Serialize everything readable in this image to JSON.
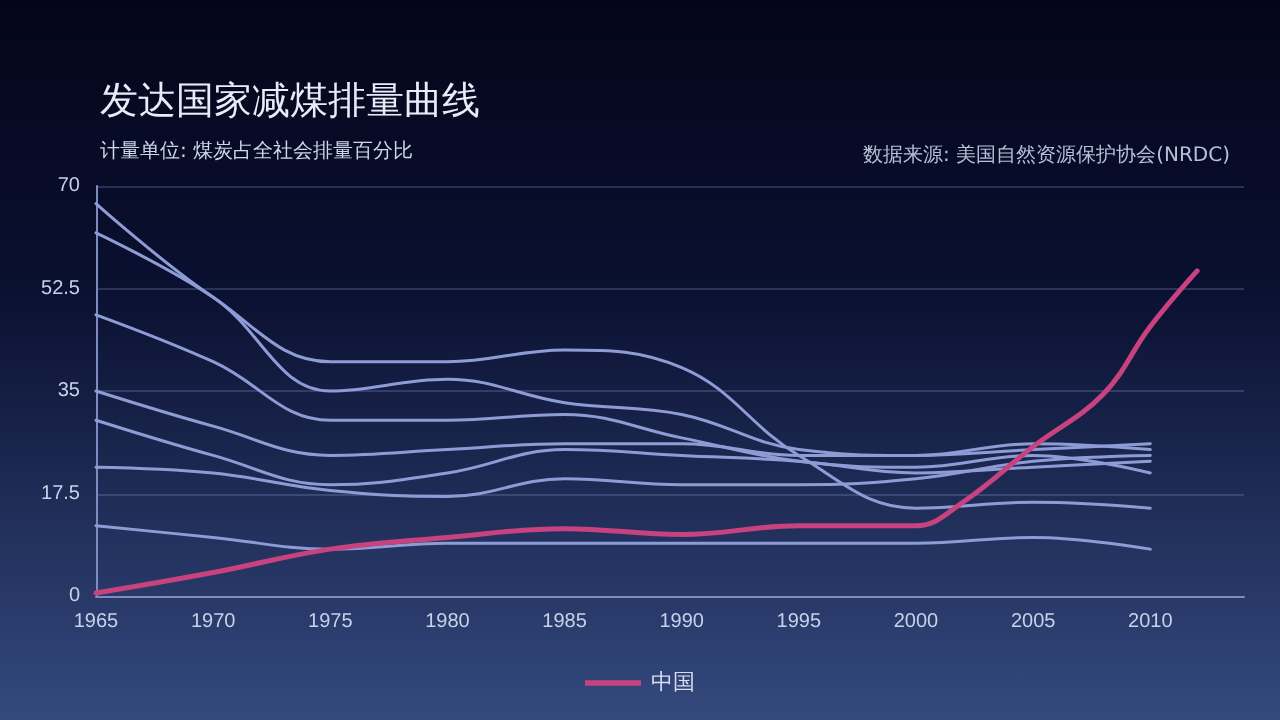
{
  "chart_data": {
    "type": "line",
    "title": "发达国家减煤排量曲线",
    "subtitle": "计量单位: 煤炭占全社会排量百分比",
    "annotations": [
      "数据来源: 美国自然资源保护协会(NRDC)"
    ],
    "x": [
      1965,
      1970,
      1975,
      1980,
      1985,
      1990,
      1995,
      2000,
      2005,
      2010
    ],
    "series": [
      {
        "color": "#8e9cd6",
        "values": [
          67,
          51,
          40,
          40,
          42,
          39,
          24,
          15,
          16,
          15
        ]
      },
      {
        "color": "#8e9cd6",
        "values": [
          62,
          51,
          35,
          37,
          33,
          31,
          25,
          24,
          26,
          25
        ]
      },
      {
        "color": "#8e9cd6",
        "values": [
          48,
          40,
          30,
          30,
          31,
          27,
          23,
          22,
          24,
          21
        ]
      },
      {
        "color": "#8e9cd6",
        "values": [
          35,
          29,
          24,
          25,
          26,
          26,
          24,
          24,
          25,
          26
        ]
      },
      {
        "color": "#8e9cd6",
        "values": [
          30,
          24,
          19,
          21,
          25,
          24,
          23,
          21,
          22,
          23
        ]
      },
      {
        "color": "#8e9cd6",
        "values": [
          22,
          21,
          18,
          17,
          20,
          19,
          19,
          20,
          23,
          24
        ]
      },
      {
        "color": "#8e9cd6",
        "values": [
          12,
          10,
          8,
          9,
          9,
          9,
          9,
          9,
          10,
          8
        ]
      },
      {
        "name": "中国",
        "color": "#c8427f",
        "x": [
          1965,
          1970,
          1975,
          1980,
          1985,
          1990,
          1995,
          2000,
          2002,
          2005,
          2008,
          2010,
          2012
        ],
        "values": [
          0.5,
          4,
          8,
          10,
          11.5,
          10.5,
          12,
          12,
          16,
          25.5,
          34.5,
          46,
          55.5
        ]
      }
    ],
    "xlim": [
      1965,
      2014
    ],
    "xticks": [
      1965,
      1970,
      1975,
      1980,
      1985,
      1990,
      1995,
      2000,
      2005,
      2010
    ],
    "ylim": [
      0,
      70
    ],
    "yticks": [
      0,
      17.5,
      35,
      52.5,
      70
    ],
    "grid": "y",
    "legend": "bottom",
    "marker": "none",
    "line_style": "solid"
  }
}
